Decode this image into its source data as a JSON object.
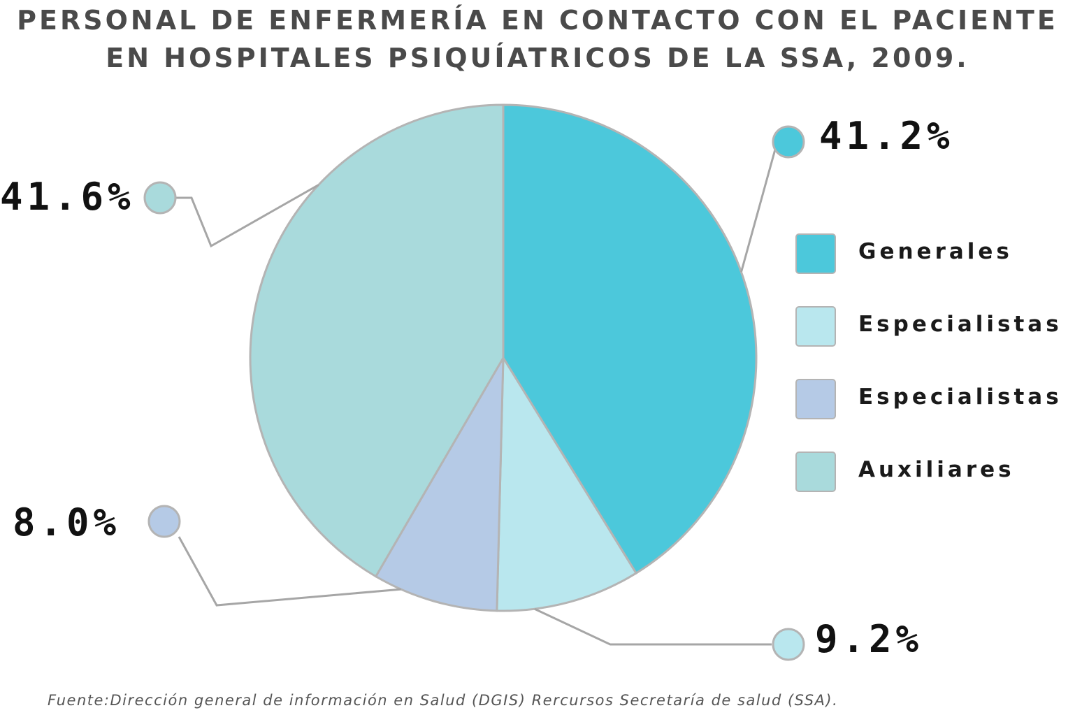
{
  "title": {
    "line1": "PERSONAL DE ENFERMERÍA EN CONTACTO CON EL PACIENTE",
    "line2": "EN HOSPITALES PSIQUÍATRICOS DE LA SSA, 2009."
  },
  "chart_data": {
    "type": "pie",
    "title": "PERSONAL DE ENFERMERÍA EN CONTACTO CON EL PACIENTE EN HOSPITALES PSIQUÍATRICOS DE LA SSA, 2009.",
    "categories": [
      "Generales",
      "Especialistas",
      "Especialistas",
      "Auxiliares"
    ],
    "values": [
      41.2,
      9.2,
      8.0,
      41.6
    ],
    "value_labels": [
      "41.2%",
      "9.2%",
      "8.0%",
      "41.6%"
    ],
    "colors": [
      "#4cc8db",
      "#b9e7ee",
      "#b5cae6",
      "#a9dadc"
    ],
    "legend_position": "right"
  },
  "legend": {
    "items": [
      {
        "label": "Generales",
        "color": "#4cc8db"
      },
      {
        "label": "Especialistas",
        "color": "#b9e7ee"
      },
      {
        "label": "Especialistas",
        "color": "#b5cae6"
      },
      {
        "label": "Auxiliares",
        "color": "#a9dadc"
      }
    ]
  },
  "source": "Fuente:Dirección general de información en Salud (DGIS) Rercursos Secretaría de salud (SSA)."
}
